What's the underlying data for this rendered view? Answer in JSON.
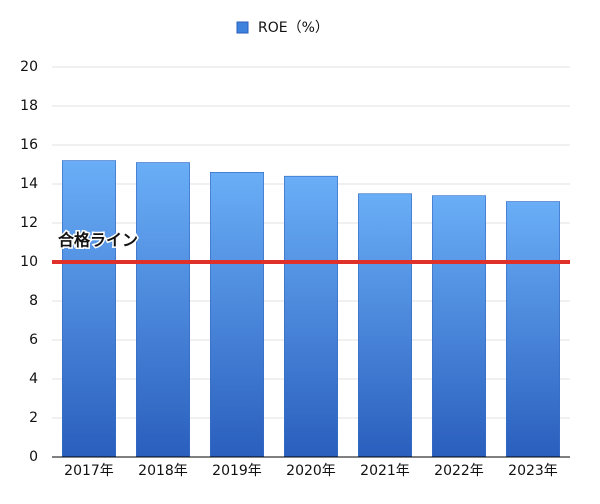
{
  "chart_data": {
    "type": "bar",
    "categories": [
      "2017年",
      "2018年",
      "2019年",
      "2020年",
      "2021年",
      "2022年",
      "2023年"
    ],
    "series": [
      {
        "name": "ROE（%）",
        "color": "#3d82dd",
        "values": [
          15.2,
          15.1,
          14.6,
          14.4,
          13.5,
          13.4,
          13.1
        ]
      }
    ],
    "ylim": [
      0,
      20
    ],
    "yticks": [
      0,
      2,
      4,
      6,
      8,
      10,
      12,
      14,
      16,
      18,
      20
    ],
    "grid": true,
    "reference_line": {
      "value": 10,
      "label": "合格ライン",
      "color": "#e0302a"
    }
  }
}
